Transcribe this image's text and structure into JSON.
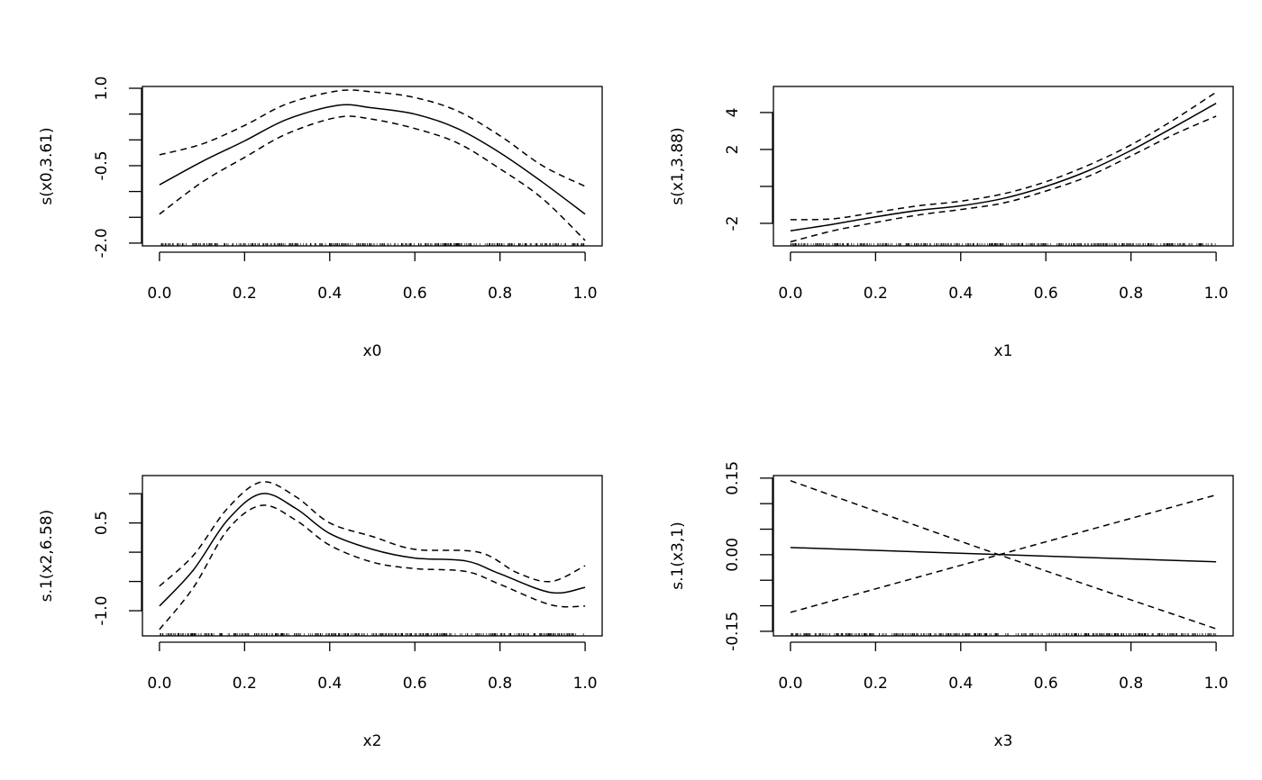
{
  "chart_data": [
    {
      "type": "line",
      "xlabel": "x0",
      "ylabel": "s(x0,3.61)",
      "xlim": [
        -0.04,
        1.04
      ],
      "ylim": [
        -2.054,
        1.035
      ],
      "xticks": [
        0.0,
        0.2,
        0.4,
        0.6,
        0.8,
        1.0
      ],
      "xtick_labels": [
        "0.0",
        "0.2",
        "0.4",
        "0.6",
        "0.8",
        "1.0"
      ],
      "yticks": [
        -2.0,
        -1.5,
        -1.0,
        -0.5,
        0.0,
        0.5,
        1.0
      ],
      "ytick_labels": [
        "-2.0",
        "",
        "",
        "-0.5",
        "",
        "",
        "1.0"
      ],
      "series": [
        {
          "name": "fit",
          "style": "solid",
          "x": [
            0,
            0.1,
            0.2,
            0.3,
            0.42,
            0.5,
            0.6,
            0.7,
            0.8,
            0.9,
            1.0
          ],
          "y": [
            -0.87,
            -0.42,
            -0.02,
            0.4,
            0.67,
            0.62,
            0.5,
            0.22,
            -0.25,
            -0.82,
            -1.44
          ]
        },
        {
          "name": "upper",
          "style": "dashed",
          "x": [
            0,
            0.1,
            0.2,
            0.3,
            0.42,
            0.5,
            0.6,
            0.7,
            0.8,
            0.9,
            1.0
          ],
          "y": [
            -0.29,
            -0.08,
            0.28,
            0.7,
            0.95,
            0.93,
            0.82,
            0.56,
            0.08,
            -0.5,
            -0.9
          ]
        },
        {
          "name": "lower",
          "style": "dashed",
          "x": [
            0,
            0.1,
            0.2,
            0.3,
            0.42,
            0.5,
            0.6,
            0.7,
            0.8,
            0.9,
            1.0
          ],
          "y": [
            -1.44,
            -0.82,
            -0.34,
            0.12,
            0.44,
            0.4,
            0.22,
            -0.06,
            -0.56,
            -1.14,
            -1.95
          ]
        }
      ]
    },
    {
      "type": "line",
      "xlabel": "x1",
      "ylabel": "s(x1,3.88)",
      "xlim": [
        -0.04,
        1.04
      ],
      "ylim": [
        -3.22,
        5.41
      ],
      "xticks": [
        0.0,
        0.2,
        0.4,
        0.6,
        0.8,
        1.0
      ],
      "xtick_labels": [
        "0.0",
        "0.2",
        "0.4",
        "0.6",
        "0.8",
        "1.0"
      ],
      "yticks": [
        -2,
        0,
        2,
        4
      ],
      "ytick_labels": [
        "-2",
        "",
        "2",
        "4"
      ],
      "series": [
        {
          "name": "fit",
          "style": "solid",
          "x": [
            0,
            0.1,
            0.2,
            0.3,
            0.4,
            0.5,
            0.6,
            0.7,
            0.8,
            0.9,
            1.0
          ],
          "y": [
            -2.4,
            -2.05,
            -1.65,
            -1.3,
            -1.05,
            -0.65,
            0.0,
            0.85,
            1.95,
            3.2,
            4.5
          ]
        },
        {
          "name": "upper",
          "style": "dashed",
          "x": [
            0,
            0.1,
            0.2,
            0.3,
            0.4,
            0.5,
            0.6,
            0.7,
            0.8,
            0.9,
            1.0
          ],
          "y": [
            -1.8,
            -1.75,
            -1.4,
            -1.05,
            -0.8,
            -0.4,
            0.25,
            1.15,
            2.25,
            3.6,
            5.1
          ]
        },
        {
          "name": "lower",
          "style": "dashed",
          "x": [
            0,
            0.1,
            0.2,
            0.3,
            0.4,
            0.5,
            0.6,
            0.7,
            0.8,
            0.9,
            1.0
          ],
          "y": [
            -3.0,
            -2.4,
            -1.95,
            -1.55,
            -1.25,
            -0.9,
            -0.25,
            0.55,
            1.65,
            2.8,
            3.8
          ]
        }
      ]
    },
    {
      "type": "line",
      "xlabel": "x2",
      "ylabel": "s.1(x2,6.58)",
      "xlim": [
        -0.04,
        1.04
      ],
      "ylim": [
        -1.43,
        1.31
      ],
      "xticks": [
        0.0,
        0.2,
        0.4,
        0.6,
        0.8,
        1.0
      ],
      "xtick_labels": [
        "0.0",
        "0.2",
        "0.4",
        "0.6",
        "0.8",
        "1.0"
      ],
      "yticks": [
        -1.0,
        -0.5,
        0.0,
        0.5,
        1.0
      ],
      "ytick_labels": [
        "-1.0",
        "",
        "",
        "0.5",
        ""
      ],
      "series": [
        {
          "name": "fit",
          "style": "solid",
          "x": [
            0,
            0.08,
            0.16,
            0.24,
            0.32,
            0.4,
            0.5,
            0.6,
            0.72,
            0.8,
            0.92,
            1.0
          ],
          "y": [
            -0.92,
            -0.3,
            0.55,
            1.0,
            0.75,
            0.32,
            0.05,
            -0.1,
            -0.15,
            -0.37,
            -0.69,
            -0.6
          ]
        },
        {
          "name": "upper",
          "style": "dashed",
          "x": [
            0,
            0.08,
            0.16,
            0.24,
            0.32,
            0.4,
            0.5,
            0.6,
            0.75,
            0.84,
            0.92,
            1.0
          ],
          "y": [
            -0.58,
            -0.05,
            0.75,
            1.2,
            0.95,
            0.5,
            0.27,
            0.05,
            0.0,
            -0.35,
            -0.5,
            -0.23
          ]
        },
        {
          "name": "lower",
          "style": "dashed",
          "x": [
            0,
            0.08,
            0.16,
            0.24,
            0.32,
            0.4,
            0.5,
            0.6,
            0.72,
            0.8,
            0.92,
            1.0
          ],
          "y": [
            -1.32,
            -0.6,
            0.38,
            0.8,
            0.55,
            0.12,
            -0.17,
            -0.28,
            -0.33,
            -0.55,
            -0.9,
            -0.92
          ]
        }
      ]
    },
    {
      "type": "line",
      "xlabel": "x3",
      "ylabel": "s.1(x3,1)",
      "xlim": [
        -0.04,
        1.04
      ],
      "ylim": [
        -0.159,
        0.155
      ],
      "xticks": [
        0.0,
        0.2,
        0.4,
        0.6,
        0.8,
        1.0
      ],
      "xtick_labels": [
        "0.0",
        "0.2",
        "0.4",
        "0.6",
        "0.8",
        "1.0"
      ],
      "yticks": [
        -0.15,
        -0.1,
        -0.05,
        0.0,
        0.05,
        0.1,
        0.15
      ],
      "ytick_labels": [
        "-0.15",
        "",
        "",
        "0.00",
        "",
        "",
        "0.15"
      ],
      "series": [
        {
          "name": "fit",
          "style": "solid",
          "x": [
            0,
            1.0
          ],
          "y": [
            0.014,
            -0.014
          ]
        },
        {
          "name": "upper",
          "style": "dashed",
          "x": [
            0,
            0.49,
            1.0
          ],
          "y": [
            -0.113,
            0.0,
            0.117
          ]
        },
        {
          "name": "lower",
          "style": "dashed",
          "x": [
            0,
            0.49,
            1.0
          ],
          "y": [
            0.145,
            0.0,
            -0.145
          ]
        }
      ]
    }
  ]
}
